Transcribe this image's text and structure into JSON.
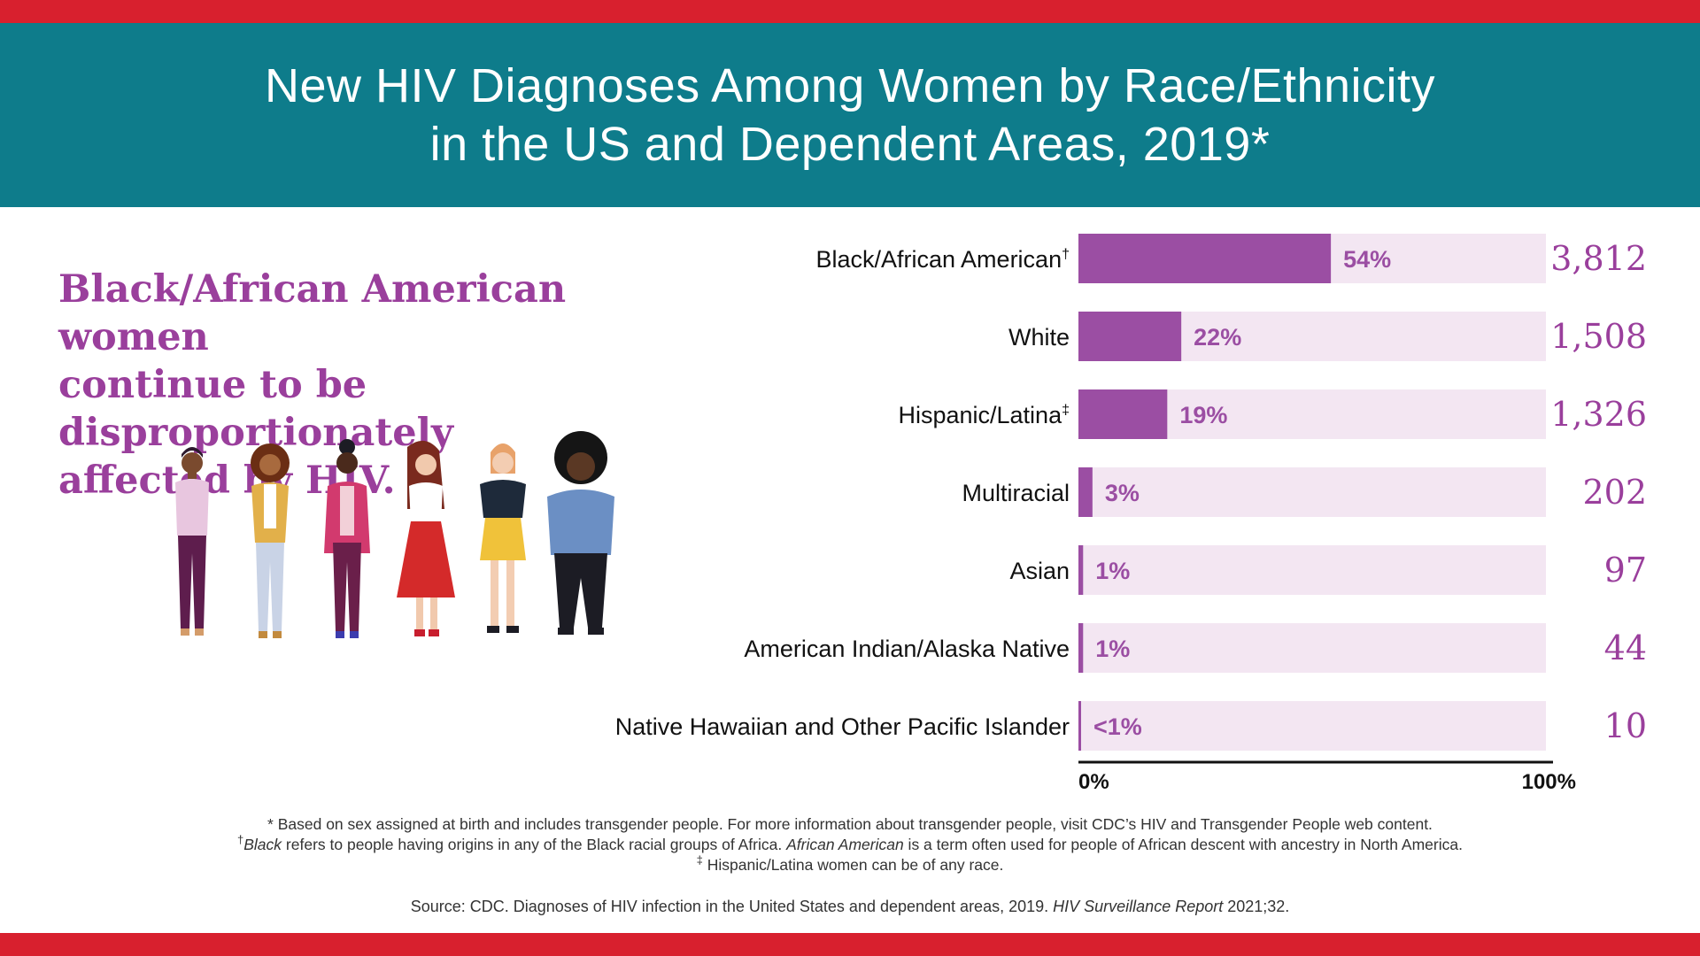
{
  "header": {
    "title_line1": "New HIV Diagnoses Among Women by Race/Ethnicity",
    "title_line2": "in the US and Dependent Areas, 2019*"
  },
  "tagline": {
    "line1": "Black/African American women",
    "line2": "continue to be disproportionately",
    "line3": "affected by HIV."
  },
  "colors": {
    "brand_red": "#d8202e",
    "header_teal": "#0e7c8b",
    "bar_purple": "#9b4ea3",
    "track_lavender": "#f3e6f2",
    "count_purple": "#9a3f9c"
  },
  "illustration": {
    "icon": "group-of-diverse-women-illustration"
  },
  "chart_data": {
    "type": "bar",
    "orientation": "horizontal",
    "title": "New HIV Diagnoses Among Women by Race/Ethnicity in the US and Dependent Areas, 2019*",
    "xlabel": "",
    "ylabel": "",
    "xlim": [
      0,
      100
    ],
    "axis_ticks": [
      "0%",
      "100%"
    ],
    "grid": false,
    "legend": "none",
    "categories": [
      "Black/African American",
      "White",
      "Hispanic/Latina",
      "Multiracial",
      "Asian",
      "American Indian/Alaska Native",
      "Native Hawaiian and Other Pacific Islander"
    ],
    "category_marks": [
      "†",
      "",
      "‡",
      "",
      "",
      "",
      ""
    ],
    "values": [
      54,
      22,
      19,
      3,
      1,
      1,
      0.5
    ],
    "value_labels": [
      "54%",
      "22%",
      "19%",
      "3%",
      "1%",
      "1%",
      "<1%"
    ],
    "counts": [
      "3,812",
      "1,508",
      "1,326",
      "202",
      "97",
      "44",
      "10"
    ]
  },
  "footnotes": {
    "note1": "* Based on sex assigned at birth and includes transgender people. For more information about transgender people, visit CDC’s HIV and Transgender People web content.",
    "note2_mark": "†",
    "note2_term1": "Black",
    "note2_text1": " refers to people having origins in any of the Black racial groups of Africa. ",
    "note2_term2": "African American",
    "note2_text2": " is a term often used for people of African descent with ancestry in North America.",
    "note3_mark": "‡",
    "note3_text": " Hispanic/Latina women can be of any race."
  },
  "source": {
    "text": "Source: CDC. Diagnoses of HIV infection in the United States and dependent areas, 2019. ",
    "report": "HIV Surveillance Report",
    "citation": " 2021;32."
  }
}
